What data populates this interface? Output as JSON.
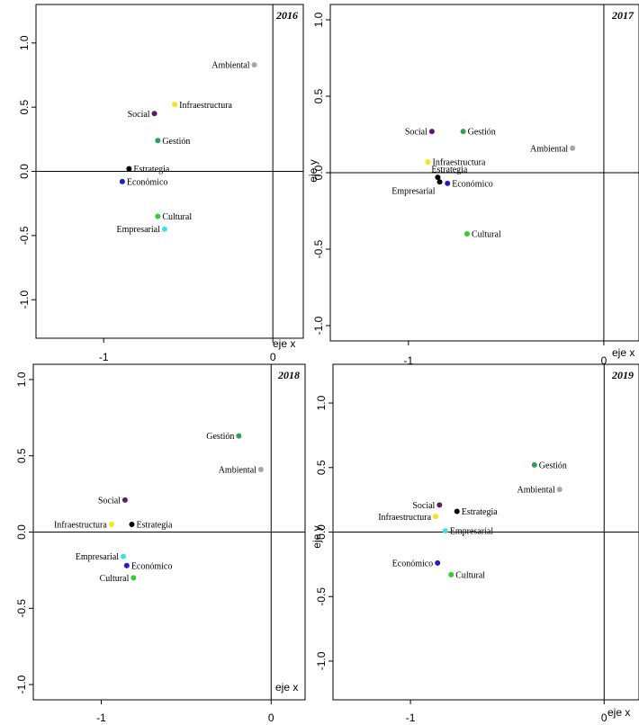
{
  "chart_data": [
    {
      "type": "scatter",
      "title": "2016",
      "xlabel": "eje x",
      "ylabel": "",
      "xlim": [
        -1.4,
        0.18
      ],
      "ylim": [
        -1.3,
        1.3
      ],
      "xticks": [
        -1,
        0
      ],
      "yticks": [
        -1.0,
        -0.5,
        0.0,
        0.5,
        1.0
      ],
      "xtick_labels": [
        "-1",
        "0"
      ],
      "ytick_labels": [
        "-1.0",
        "-0.5",
        "0.0",
        "0.5",
        "1.0"
      ],
      "points": [
        {
          "label": "Ambiental",
          "x": -0.11,
          "y": 0.83,
          "color": "#a6a6a6",
          "label_side": "left"
        },
        {
          "label": "Infraestructura",
          "x": -0.58,
          "y": 0.52,
          "color": "#f5e614",
          "label_side": "right"
        },
        {
          "label": "Social",
          "x": -0.7,
          "y": 0.45,
          "color": "#5c1a6e",
          "label_side": "left"
        },
        {
          "label": "Gestión",
          "x": -0.68,
          "y": 0.24,
          "color": "#2e9e5a",
          "label_side": "right"
        },
        {
          "label": "Estrategia",
          "x": -0.85,
          "y": 0.02,
          "color": "#000000",
          "label_side": "right"
        },
        {
          "label": "Económico",
          "x": -0.89,
          "y": -0.08,
          "color": "#1f1fbf",
          "label_side": "right"
        },
        {
          "label": "Cultural",
          "x": -0.68,
          "y": -0.35,
          "color": "#33cc33",
          "label_side": "right"
        },
        {
          "label": "Empresarial",
          "x": -0.64,
          "y": -0.45,
          "color": "#40e0e0",
          "label_side": "left"
        }
      ]
    },
    {
      "type": "scatter",
      "title": "2017",
      "xlabel": "eje x",
      "ylabel": "eje y",
      "xlim": [
        -1.4,
        0.18
      ],
      "ylim": [
        -1.1,
        1.1
      ],
      "xticks": [
        -1,
        0
      ],
      "yticks": [
        -1.0,
        -0.5,
        0.0,
        0.5,
        1.0
      ],
      "xtick_labels": [
        "-1",
        "0"
      ],
      "ytick_labels": [
        "-1.0",
        "-0.5",
        "0.0",
        "0.5",
        "1.0"
      ],
      "points": [
        {
          "label": "Social",
          "x": -0.88,
          "y": 0.27,
          "color": "#5c1a6e",
          "label_side": "left"
        },
        {
          "label": "Gestión",
          "x": -0.72,
          "y": 0.27,
          "color": "#2e9e5a",
          "label_side": "right"
        },
        {
          "label": "Ambiental",
          "x": -0.16,
          "y": 0.16,
          "color": "#a6a6a6",
          "label_side": "left"
        },
        {
          "label": "Infraestructura",
          "x": -0.9,
          "y": 0.07,
          "color": "#f5e614",
          "label_side": "right"
        },
        {
          "label": "Estrategia",
          "x": -0.85,
          "y": -0.03,
          "color": "#000000",
          "label_side": "right",
          "label_dx": -12,
          "label_dy": -9
        },
        {
          "label": "Empresarial",
          "x": -0.84,
          "y": -0.06,
          "color": "#000000",
          "label_side": "left",
          "label_dy": 10
        },
        {
          "label": "Económico",
          "x": -0.8,
          "y": -0.07,
          "color": "#1f1fbf",
          "label_side": "right"
        },
        {
          "label": "Cultural",
          "x": -0.7,
          "y": -0.4,
          "color": "#33cc33",
          "label_side": "right"
        }
      ]
    },
    {
      "type": "scatter",
      "title": "2018",
      "xlabel": "eje x",
      "ylabel": "",
      "xlim": [
        -1.4,
        0.2
      ],
      "ylim": [
        -1.1,
        1.1
      ],
      "xticks": [
        -1,
        0
      ],
      "yticks": [
        -1.0,
        -0.5,
        0.0,
        0.5,
        1.0
      ],
      "xtick_labels": [
        "-1",
        "0"
      ],
      "ytick_labels": [
        "-1.0",
        "-0.5",
        "0.0",
        "0.5",
        "1.0"
      ],
      "points": [
        {
          "label": "Gestión",
          "x": -0.19,
          "y": 0.63,
          "color": "#2e9e5a",
          "label_side": "left"
        },
        {
          "label": "Ambiental",
          "x": -0.06,
          "y": 0.41,
          "color": "#a6a6a6",
          "label_side": "left"
        },
        {
          "label": "Social",
          "x": -0.86,
          "y": 0.21,
          "color": "#5c1a6e",
          "label_side": "left"
        },
        {
          "label": "Infraestructura",
          "x": -0.94,
          "y": 0.05,
          "color": "#f5e614",
          "label_side": "left"
        },
        {
          "label": "Estrategia",
          "x": -0.82,
          "y": 0.05,
          "color": "#000000",
          "label_side": "right"
        },
        {
          "label": "Empresarial",
          "x": -0.87,
          "y": -0.16,
          "color": "#40e0e0",
          "label_side": "left"
        },
        {
          "label": "Económico",
          "x": -0.85,
          "y": -0.22,
          "color": "#1f1fbf",
          "label_side": "right"
        },
        {
          "label": "Cultural",
          "x": -0.81,
          "y": -0.3,
          "color": "#33cc33",
          "label_side": "left"
        }
      ]
    },
    {
      "type": "scatter",
      "title": "2019",
      "xlabel": "eje x",
      "ylabel": "eje y",
      "xlim": [
        -1.4,
        0.18
      ],
      "ylim": [
        -1.3,
        1.3
      ],
      "xticks": [
        -1,
        0
      ],
      "yticks": [
        -1.0,
        -0.5,
        0.0,
        0.5,
        1.0
      ],
      "xtick_labels": [
        "-1",
        "0"
      ],
      "ytick_labels": [
        "-1.0",
        "-0.5",
        "0.0",
        "0.5",
        "1.0"
      ],
      "points": [
        {
          "label": "Gestión",
          "x": -0.36,
          "y": 0.52,
          "color": "#2e9e5a",
          "label_side": "right"
        },
        {
          "label": "Ambiental",
          "x": -0.23,
          "y": 0.33,
          "color": "#a6a6a6",
          "label_side": "left"
        },
        {
          "label": "Social",
          "x": -0.85,
          "y": 0.21,
          "color": "#5c1a6e",
          "label_side": "left"
        },
        {
          "label": "Estrategia",
          "x": -0.76,
          "y": 0.16,
          "color": "#000000",
          "label_side": "right"
        },
        {
          "label": "Infraestructura",
          "x": -0.87,
          "y": 0.12,
          "color": "#f5e614",
          "label_side": "left"
        },
        {
          "label": "Empresarial",
          "x": -0.82,
          "y": 0.01,
          "color": "#40e0e0",
          "label_side": "right"
        },
        {
          "label": "Económico",
          "x": -0.86,
          "y": -0.24,
          "color": "#1f1fbf",
          "label_side": "left"
        },
        {
          "label": "Cultural",
          "x": -0.79,
          "y": -0.33,
          "color": "#33cc33",
          "label_side": "right"
        }
      ]
    }
  ]
}
